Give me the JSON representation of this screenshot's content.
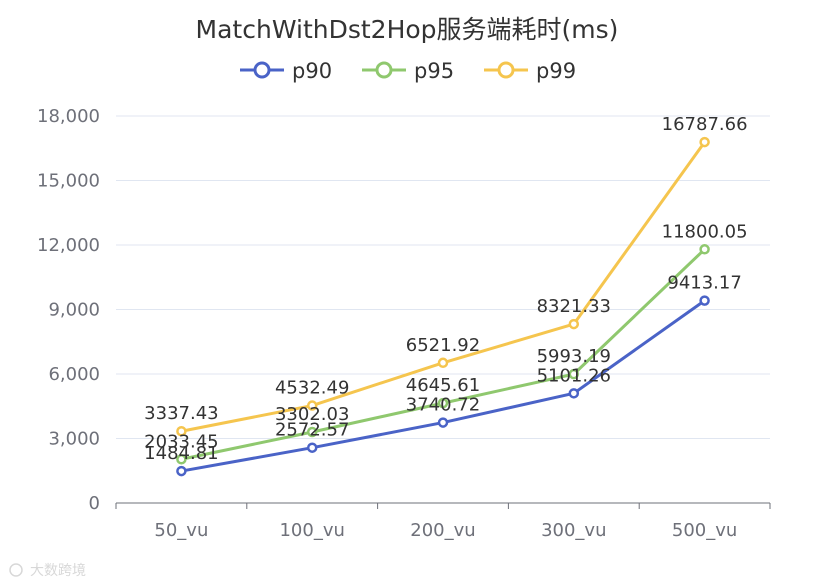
{
  "chart_data": {
    "type": "line",
    "title": "MatchWithDst2Hop服务端耗时(ms)",
    "categories": [
      "50_vu",
      "100_vu",
      "200_vu",
      "300_vu",
      "500_vu"
    ],
    "series": [
      {
        "name": "p90",
        "color": "#4a63c7",
        "values": [
          1484.81,
          2572.57,
          3740.72,
          5101.26,
          9413.17
        ]
      },
      {
        "name": "p95",
        "color": "#8fc86e",
        "values": [
          2033.45,
          3302.03,
          4645.61,
          5993.19,
          11800.05
        ]
      },
      {
        "name": "p99",
        "color": "#f5c54e",
        "values": [
          3337.43,
          4532.49,
          6521.92,
          8321.33,
          16787.66
        ]
      }
    ],
    "ylim": [
      0,
      18000
    ],
    "yticks": [
      0,
      3000,
      6000,
      9000,
      12000,
      15000,
      18000
    ],
    "ytick_labels": [
      "0",
      "3,000",
      "6,000",
      "9,000",
      "12,000",
      "15,000",
      "18,000"
    ],
    "grid": true,
    "legend_position": "top-center"
  },
  "watermark": "大数跨境"
}
